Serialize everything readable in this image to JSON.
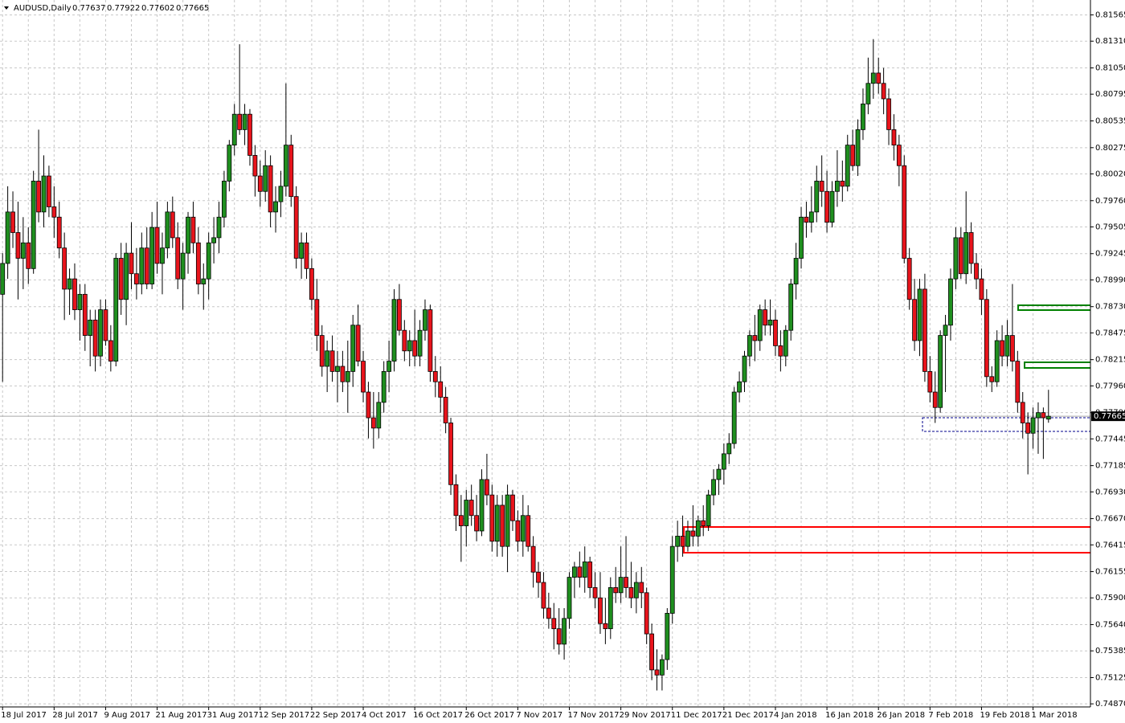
{
  "chart_data": {
    "type": "candlestick",
    "title": "AUDUSD,Daily",
    "up_color": "#1f8f1f",
    "down_color": "#e8141c",
    "grid": true,
    "ylim": [
      0.7484,
      0.8171
    ],
    "yticks": [
      0.81565,
      {
        "value": 0.8131,
        "label": "0.81310"
      },
      {
        "value": 0.8105,
        "label": "0.81050"
      },
      0.80795,
      0.80535,
      0.80275,
      {
        "value": 0.8002,
        "label": "0.80020"
      },
      {
        "value": 0.7976,
        "label": "0.79760"
      },
      0.79505,
      0.79245,
      {
        "value": 0.7899,
        "label": "0.78990"
      },
      {
        "value": 0.7873,
        "label": "0.78730"
      },
      0.78475,
      0.78215,
      {
        "value": 0.7796,
        "label": "0.77960"
      },
      {
        "value": 0.777,
        "label": "0.77700"
      },
      0.77445,
      0.77185,
      {
        "value": 0.7693,
        "label": "0.76930"
      },
      {
        "value": 0.7667,
        "label": "0.76670"
      },
      0.76415,
      0.76155,
      {
        "value": 0.759,
        "label": "0.75900"
      },
      {
        "value": 0.7564,
        "label": "0.75640"
      },
      0.75385,
      0.75125,
      {
        "value": 0.7487,
        "label": "0.74870"
      }
    ],
    "categories": [
      "18 Jul 2017",
      null,
      null,
      null,
      null,
      null,
      null,
      null,
      null,
      null,
      "28 Jul 2017",
      null,
      null,
      null,
      null,
      null,
      null,
      null,
      null,
      null,
      "9 Aug 2017",
      null,
      null,
      null,
      null,
      null,
      null,
      null,
      null,
      null,
      "21 Aug 2017",
      null,
      null,
      null,
      null,
      null,
      null,
      null,
      null,
      null,
      "31 Aug 2017",
      null,
      null,
      null,
      null,
      null,
      null,
      null,
      null,
      null,
      "12 Sep 2017",
      null,
      null,
      null,
      null,
      null,
      null,
      null,
      null,
      null,
      "22 Sep 2017",
      null,
      null,
      null,
      null,
      null,
      null,
      null,
      null,
      null,
      "4 Oct 2017",
      null,
      null,
      null,
      null,
      null,
      null,
      null,
      null,
      null,
      "16 Oct 2017",
      null,
      null,
      null,
      null,
      null,
      null,
      null,
      null,
      null,
      "26 Oct 2017",
      null,
      null,
      null,
      null,
      null,
      null,
      null,
      null,
      null,
      "7 Nov 2017",
      null,
      null,
      null,
      null,
      null,
      null,
      null,
      null,
      null,
      "17 Nov 2017",
      null,
      null,
      null,
      null,
      null,
      null,
      null,
      null,
      null,
      "29 Nov 2017",
      null,
      null,
      null,
      null,
      null,
      null,
      null,
      null,
      null,
      "11 Dec 2017",
      null,
      null,
      null,
      null,
      null,
      null,
      null,
      null,
      null,
      "21 Dec 2017",
      null,
      null,
      null,
      null,
      null,
      null,
      null,
      null,
      null,
      "4 Jan 2018",
      null,
      null,
      null,
      null,
      null,
      null,
      null,
      null,
      null,
      "16 Jan 2018",
      null,
      null,
      null,
      null,
      null,
      null,
      null,
      null,
      null,
      "26 Jan 2018",
      null,
      null,
      null,
      null,
      null,
      null,
      null,
      null,
      null,
      "7 Feb 2018",
      null,
      null,
      null,
      null,
      null,
      null,
      null,
      null,
      null,
      "19 Feb 2018",
      null,
      null,
      null,
      null,
      null,
      null,
      null,
      null,
      null,
      "1 Mar 2018",
      null,
      null,
      null
    ],
    "ohlc": [
      [
        0.7885,
        0.7925,
        0.78,
        0.7915
      ],
      [
        0.7915,
        0.799,
        0.79,
        0.7965
      ],
      [
        0.7965,
        0.7985,
        0.793,
        0.7945
      ],
      [
        0.7945,
        0.7975,
        0.788,
        0.792
      ],
      [
        0.792,
        0.796,
        0.789,
        0.7935
      ],
      [
        0.7935,
        0.795,
        0.7895,
        0.791
      ],
      [
        0.791,
        0.8005,
        0.7905,
        0.7995
      ],
      [
        0.7995,
        0.8045,
        0.7955,
        0.7965
      ],
      [
        0.7965,
        0.802,
        0.795,
        0.8
      ],
      [
        0.8,
        0.801,
        0.796,
        0.797
      ],
      [
        0.797,
        0.799,
        0.794,
        0.796
      ],
      [
        0.796,
        0.7975,
        0.792,
        0.793
      ],
      [
        0.793,
        0.7945,
        0.786,
        0.789
      ],
      [
        0.789,
        0.791,
        0.7865,
        0.79
      ],
      [
        0.79,
        0.7915,
        0.786,
        0.787
      ],
      [
        0.787,
        0.7895,
        0.784,
        0.7885
      ],
      [
        0.7885,
        0.7895,
        0.783,
        0.7845
      ],
      [
        0.7845,
        0.787,
        0.7815,
        0.786
      ],
      [
        0.786,
        0.787,
        0.781,
        0.7825
      ],
      [
        0.7825,
        0.788,
        0.7815,
        0.787
      ],
      [
        0.787,
        0.788,
        0.7835,
        0.784
      ],
      [
        0.784,
        0.7855,
        0.781,
        0.782
      ],
      [
        0.782,
        0.7925,
        0.7815,
        0.792
      ],
      [
        0.792,
        0.7935,
        0.7865,
        0.788
      ],
      [
        0.788,
        0.7935,
        0.7855,
        0.7925
      ],
      [
        0.7925,
        0.7955,
        0.789,
        0.7905
      ],
      [
        0.7905,
        0.793,
        0.788,
        0.7895
      ],
      [
        0.7895,
        0.7945,
        0.7885,
        0.793
      ],
      [
        0.793,
        0.795,
        0.789,
        0.7895
      ],
      [
        0.7895,
        0.7965,
        0.789,
        0.795
      ],
      [
        0.795,
        0.7975,
        0.7905,
        0.7915
      ],
      [
        0.7915,
        0.7945,
        0.7885,
        0.793
      ],
      [
        0.793,
        0.7975,
        0.792,
        0.7965
      ],
      [
        0.7965,
        0.798,
        0.793,
        0.794
      ],
      [
        0.794,
        0.7955,
        0.789,
        0.79
      ],
      [
        0.79,
        0.7935,
        0.787,
        0.7925
      ],
      [
        0.7925,
        0.7965,
        0.7905,
        0.796
      ],
      [
        0.796,
        0.7975,
        0.7925,
        0.7935
      ],
      [
        0.7935,
        0.795,
        0.7885,
        0.7895
      ],
      [
        0.7895,
        0.7915,
        0.787,
        0.79
      ],
      [
        0.79,
        0.7945,
        0.788,
        0.7935
      ],
      [
        0.7935,
        0.796,
        0.7915,
        0.794
      ],
      [
        0.794,
        0.7975,
        0.7925,
        0.796
      ],
      [
        0.796,
        0.8005,
        0.795,
        0.7995
      ],
      [
        0.7995,
        0.8035,
        0.7985,
        0.803
      ],
      [
        0.803,
        0.807,
        0.802,
        0.806
      ],
      [
        0.806,
        0.8128,
        0.804,
        0.8045
      ],
      [
        0.8045,
        0.807,
        0.803,
        0.806
      ],
      [
        0.806,
        0.8065,
        0.801,
        0.802
      ],
      [
        0.802,
        0.803,
        0.798,
        0.8
      ],
      [
        0.8,
        0.8015,
        0.797,
        0.7985
      ],
      [
        0.7985,
        0.8025,
        0.7975,
        0.801
      ],
      [
        0.801,
        0.802,
        0.795,
        0.7965
      ],
      [
        0.7965,
        0.799,
        0.7945,
        0.7975
      ],
      [
        0.7975,
        0.8005,
        0.796,
        0.799
      ],
      [
        0.799,
        0.809,
        0.798,
        0.803
      ],
      [
        0.803,
        0.804,
        0.797,
        0.798
      ],
      [
        0.798,
        0.799,
        0.791,
        0.792
      ],
      [
        0.792,
        0.7945,
        0.79,
        0.7935
      ],
      [
        0.7935,
        0.7945,
        0.79,
        0.791
      ],
      [
        0.791,
        0.792,
        0.787,
        0.788
      ],
      [
        0.788,
        0.79,
        0.783,
        0.7845
      ],
      [
        0.7845,
        0.7855,
        0.7805,
        0.7815
      ],
      [
        0.7815,
        0.784,
        0.779,
        0.783
      ],
      [
        0.783,
        0.7845,
        0.78,
        0.781
      ],
      [
        0.781,
        0.783,
        0.778,
        0.7815
      ],
      [
        0.7815,
        0.783,
        0.779,
        0.78
      ],
      [
        0.78,
        0.784,
        0.777,
        0.781
      ],
      [
        0.781,
        0.7865,
        0.7795,
        0.7855
      ],
      [
        0.7855,
        0.7875,
        0.7815,
        0.782
      ],
      [
        0.782,
        0.783,
        0.778,
        0.779
      ],
      [
        0.779,
        0.78,
        0.7745,
        0.7765
      ],
      [
        0.7765,
        0.779,
        0.7735,
        0.7755
      ],
      [
        0.7755,
        0.779,
        0.7745,
        0.778
      ],
      [
        0.778,
        0.782,
        0.777,
        0.781
      ],
      [
        0.781,
        0.784,
        0.779,
        0.782
      ],
      [
        0.782,
        0.789,
        0.781,
        0.788
      ],
      [
        0.788,
        0.7895,
        0.7845,
        0.785
      ],
      [
        0.785,
        0.786,
        0.782,
        0.783
      ],
      [
        0.783,
        0.785,
        0.7815,
        0.784
      ],
      [
        0.784,
        0.787,
        0.7815,
        0.7825
      ],
      [
        0.7825,
        0.786,
        0.7815,
        0.785
      ],
      [
        0.785,
        0.788,
        0.784,
        0.787
      ],
      [
        0.787,
        0.7875,
        0.78,
        0.781
      ],
      [
        0.781,
        0.7825,
        0.7785,
        0.78
      ],
      [
        0.78,
        0.7815,
        0.777,
        0.7785
      ],
      [
        0.7785,
        0.7795,
        0.775,
        0.776
      ],
      [
        0.776,
        0.7765,
        0.769,
        0.77
      ],
      [
        0.77,
        0.771,
        0.7655,
        0.767
      ],
      [
        0.767,
        0.769,
        0.7625,
        0.766
      ],
      [
        0.766,
        0.7695,
        0.764,
        0.7685
      ],
      [
        0.7685,
        0.77,
        0.766,
        0.767
      ],
      [
        0.767,
        0.769,
        0.7645,
        0.7655
      ],
      [
        0.7655,
        0.7715,
        0.765,
        0.7705
      ],
      [
        0.7705,
        0.773,
        0.768,
        0.769
      ],
      [
        0.769,
        0.77,
        0.7635,
        0.7645
      ],
      [
        0.7645,
        0.769,
        0.763,
        0.768
      ],
      [
        0.768,
        0.769,
        0.763,
        0.764
      ],
      [
        0.764,
        0.77,
        0.7615,
        0.769
      ],
      [
        0.769,
        0.7695,
        0.7655,
        0.7665
      ],
      [
        0.7665,
        0.7675,
        0.7635,
        0.7645
      ],
      [
        0.7645,
        0.769,
        0.763,
        0.767
      ],
      [
        0.767,
        0.768,
        0.7635,
        0.764
      ],
      [
        0.764,
        0.765,
        0.76,
        0.7615
      ],
      [
        0.7615,
        0.7625,
        0.759,
        0.7605
      ],
      [
        0.7605,
        0.7615,
        0.757,
        0.758
      ],
      [
        0.758,
        0.7595,
        0.756,
        0.757
      ],
      [
        0.757,
        0.7585,
        0.754,
        0.756
      ],
      [
        0.756,
        0.758,
        0.7535,
        0.7545
      ],
      [
        0.7545,
        0.758,
        0.753,
        0.757
      ],
      [
        0.757,
        0.7615,
        0.756,
        0.761
      ],
      [
        0.761,
        0.7625,
        0.759,
        0.762
      ],
      [
        0.762,
        0.7635,
        0.76,
        0.761
      ],
      [
        0.761,
        0.764,
        0.7595,
        0.7625
      ],
      [
        0.7625,
        0.763,
        0.759,
        0.76
      ],
      [
        0.76,
        0.7615,
        0.758,
        0.759
      ],
      [
        0.759,
        0.7615,
        0.7555,
        0.7565
      ],
      [
        0.7565,
        0.759,
        0.7545,
        0.756
      ],
      [
        0.756,
        0.761,
        0.755,
        0.76
      ],
      [
        0.76,
        0.762,
        0.7585,
        0.7595
      ],
      [
        0.7595,
        0.764,
        0.7585,
        0.761
      ],
      [
        0.761,
        0.765,
        0.759,
        0.76
      ],
      [
        0.76,
        0.7625,
        0.758,
        0.759
      ],
      [
        0.759,
        0.7615,
        0.7575,
        0.7605
      ],
      [
        0.7605,
        0.762,
        0.758,
        0.7595
      ],
      [
        0.7595,
        0.76,
        0.7545,
        0.7555
      ],
      [
        0.7555,
        0.7565,
        0.751,
        0.752
      ],
      [
        0.752,
        0.754,
        0.75,
        0.7515
      ],
      [
        0.7515,
        0.7535,
        0.75,
        0.753
      ],
      [
        0.753,
        0.758,
        0.752,
        0.7575
      ],
      [
        0.7575,
        0.765,
        0.7565,
        0.764
      ],
      [
        0.764,
        0.7665,
        0.7625,
        0.765
      ],
      [
        0.765,
        0.767,
        0.763,
        0.764
      ],
      [
        0.764,
        0.7665,
        0.7635,
        0.7655
      ],
      [
        0.7655,
        0.768,
        0.764,
        0.765
      ],
      [
        0.765,
        0.767,
        0.764,
        0.7665
      ],
      [
        0.7665,
        0.768,
        0.765,
        0.766
      ],
      [
        0.766,
        0.7695,
        0.7655,
        0.769
      ],
      [
        0.769,
        0.7715,
        0.768,
        0.7705
      ],
      [
        0.7705,
        0.772,
        0.769,
        0.7715
      ],
      [
        0.7715,
        0.774,
        0.77,
        0.773
      ],
      [
        0.773,
        0.775,
        0.772,
        0.774
      ],
      [
        0.774,
        0.7795,
        0.7735,
        0.779
      ],
      [
        0.779,
        0.781,
        0.778,
        0.78
      ],
      [
        0.78,
        0.783,
        0.779,
        0.7825
      ],
      [
        0.7825,
        0.785,
        0.7815,
        0.7845
      ],
      [
        0.7845,
        0.7865,
        0.782,
        0.784
      ],
      [
        0.784,
        0.7875,
        0.783,
        0.787
      ],
      [
        0.787,
        0.788,
        0.7845,
        0.7855
      ],
      [
        0.7855,
        0.788,
        0.7845,
        0.786
      ],
      [
        0.786,
        0.787,
        0.7825,
        0.7835
      ],
      [
        0.7835,
        0.785,
        0.781,
        0.7825
      ],
      [
        0.7825,
        0.7855,
        0.7815,
        0.785
      ],
      [
        0.785,
        0.79,
        0.784,
        0.7895
      ],
      [
        0.7895,
        0.7935,
        0.788,
        0.792
      ],
      [
        0.792,
        0.797,
        0.791,
        0.796
      ],
      [
        0.796,
        0.7975,
        0.794,
        0.7955
      ],
      [
        0.7955,
        0.799,
        0.7945,
        0.7965
      ],
      [
        0.7965,
        0.801,
        0.7955,
        0.7995
      ],
      [
        0.7995,
        0.802,
        0.797,
        0.7985
      ],
      [
        0.7985,
        0.8005,
        0.7945,
        0.7955
      ],
      [
        0.7955,
        0.7995,
        0.795,
        0.7985
      ],
      [
        0.7985,
        0.8025,
        0.797,
        0.7995
      ],
      [
        0.7995,
        0.8015,
        0.7975,
        0.799
      ],
      [
        0.799,
        0.804,
        0.7985,
        0.803
      ],
      [
        0.803,
        0.8045,
        0.8005,
        0.801
      ],
      [
        0.801,
        0.8055,
        0.8,
        0.8045
      ],
      [
        0.8045,
        0.8085,
        0.8035,
        0.807
      ],
      [
        0.807,
        0.8115,
        0.806,
        0.809
      ],
      [
        0.809,
        0.8133,
        0.8075,
        0.81
      ],
      [
        0.81,
        0.8115,
        0.808,
        0.809
      ],
      [
        0.809,
        0.8105,
        0.806,
        0.8075
      ],
      [
        0.8075,
        0.8085,
        0.803,
        0.8045
      ],
      [
        0.8045,
        0.806,
        0.8015,
        0.803
      ],
      [
        0.803,
        0.804,
        0.799,
        0.801
      ],
      [
        0.801,
        0.802,
        0.7915,
        0.792
      ],
      [
        0.792,
        0.793,
        0.787,
        0.788
      ],
      [
        0.788,
        0.79,
        0.783,
        0.784
      ],
      [
        0.784,
        0.79,
        0.7825,
        0.789
      ],
      [
        0.789,
        0.7905,
        0.78,
        0.781
      ],
      [
        0.781,
        0.7825,
        0.778,
        0.779
      ],
      [
        0.779,
        0.781,
        0.776,
        0.7775
      ],
      [
        0.7775,
        0.785,
        0.777,
        0.7845
      ],
      [
        0.7845,
        0.7865,
        0.779,
        0.7855
      ],
      [
        0.7855,
        0.791,
        0.784,
        0.79
      ],
      [
        0.79,
        0.795,
        0.789,
        0.794
      ],
      [
        0.794,
        0.795,
        0.79,
        0.7905
      ],
      [
        0.7905,
        0.7985,
        0.7895,
        0.7945
      ],
      [
        0.7945,
        0.7955,
        0.7905,
        0.7915
      ],
      [
        0.7915,
        0.7925,
        0.789,
        0.79
      ],
      [
        0.79,
        0.791,
        0.7865,
        0.788
      ],
      [
        0.788,
        0.789,
        0.7795,
        0.7805
      ],
      [
        0.7805,
        0.7815,
        0.779,
        0.78
      ],
      [
        0.78,
        0.785,
        0.7795,
        0.784
      ],
      [
        0.784,
        0.7855,
        0.7815,
        0.7825
      ],
      [
        0.7825,
        0.786,
        0.7815,
        0.7845
      ],
      [
        0.7845,
        0.7895,
        0.781,
        0.782
      ],
      [
        0.782,
        0.783,
        0.777,
        0.778
      ],
      [
        0.778,
        0.779,
        0.7745,
        0.776
      ],
      [
        0.776,
        0.777,
        0.771,
        0.775
      ],
      [
        0.775,
        0.7775,
        0.7735,
        0.7765
      ],
      [
        0.7765,
        0.778,
        0.773,
        0.777
      ],
      [
        0.777,
        0.7775,
        0.7725,
        0.7765
      ],
      [
        0.77637,
        0.77922,
        0.77602,
        0.77665
      ]
    ]
  }
}
